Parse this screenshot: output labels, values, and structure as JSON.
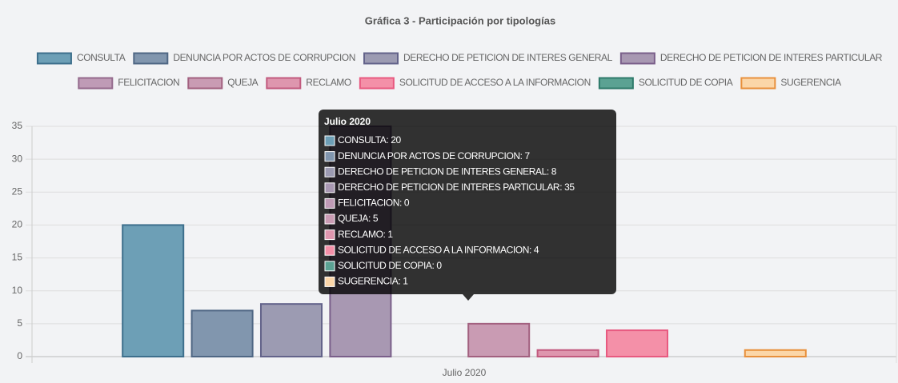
{
  "chart_data": {
    "type": "bar",
    "title": "Gráfica 3 - Participación por tipologías",
    "categories": [
      "Julio 2020"
    ],
    "series": [
      {
        "name": "CONSULTA",
        "color": "#6d9fb6",
        "border_color": "#3d6f8c",
        "values": [
          20
        ]
      },
      {
        "name": "DENUNCIA POR ACTOS DE CORRUPCION",
        "color": "#8196ae",
        "border_color": "#4f6784",
        "values": [
          7
        ]
      },
      {
        "name": "DERECHO DE PETICION DE INTERES GENERAL",
        "color": "#9c9bb2",
        "border_color": "#63638a",
        "values": [
          8
        ]
      },
      {
        "name": "DERECHO DE PETICION DE INTERES PARTICULAR",
        "color": "#a898b2",
        "border_color": "#7a5f8a",
        "values": [
          35
        ]
      },
      {
        "name": "FELICITACION",
        "color": "#bf9bb6",
        "border_color": "#946a8c",
        "values": [
          0
        ]
      },
      {
        "name": "QUEJA",
        "color": "#c99bb3",
        "border_color": "#a2607f",
        "values": [
          5
        ]
      },
      {
        "name": "RECLAMO",
        "color": "#de96ae",
        "border_color": "#c25a7e",
        "values": [
          1
        ]
      },
      {
        "name": "SOLICITUD DE ACCESO A LA INFORMACION",
        "color": "#f490a8",
        "border_color": "#e85a80",
        "values": [
          4
        ]
      },
      {
        "name": "SOLICITUD DE COPIA",
        "color": "#5ba293",
        "border_color": "#2e7a6a",
        "values": [
          0
        ]
      },
      {
        "name": "SUGERENCIA",
        "color": "#fbd6a8",
        "border_color": "#e8903c",
        "values": [
          1
        ]
      }
    ],
    "ylim": [
      0,
      35
    ],
    "yticks": [
      0,
      5,
      10,
      15,
      20,
      25,
      30,
      35
    ],
    "grid": true,
    "legend": "top",
    "tooltip": {
      "lines": [
        "CONSULTA: 20",
        "DENUNCIA POR ACTOS DE CORRUPCION: 7",
        "DERECHO DE PETICION DE INTERES GENERAL: 8",
        "DERECHO DE PETICION DE INTERES PARTICULAR: 35",
        "FELICITACION: 0",
        "QUEJA: 5",
        "RECLAMO: 1",
        "SOLICITUD DE ACCESO A LA INFORMACION: 4",
        "SOLICITUD DE COPIA: 0",
        "SUGERENCIA: 1"
      ]
    }
  }
}
